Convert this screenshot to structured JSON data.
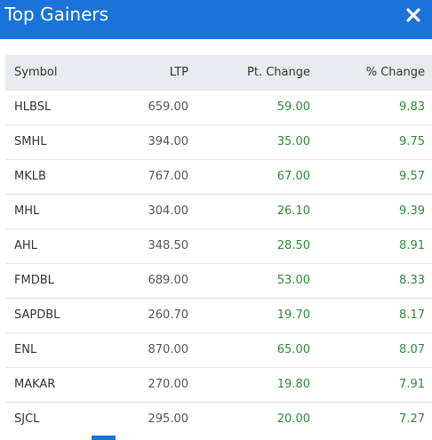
{
  "modal": {
    "title": "Top Gainers",
    "close_icon": "close-icon"
  },
  "table": {
    "headers": {
      "symbol": "Symbol",
      "ltp": "LTP",
      "pt_change": "Pt. Change",
      "pct_change": "% Change"
    },
    "rows": [
      {
        "symbol": "HLBSL",
        "ltp": "659.00",
        "pt_change": "59.00",
        "pct_change": "9.83"
      },
      {
        "symbol": "SMHL",
        "ltp": "394.00",
        "pt_change": "35.00",
        "pct_change": "9.75"
      },
      {
        "symbol": "MKLB",
        "ltp": "767.00",
        "pt_change": "67.00",
        "pct_change": "9.57"
      },
      {
        "symbol": "MHL",
        "ltp": "304.00",
        "pt_change": "26.10",
        "pct_change": "9.39"
      },
      {
        "symbol": "AHL",
        "ltp": "348.50",
        "pt_change": "28.50",
        "pct_change": "8.91"
      },
      {
        "symbol": "FMDBL",
        "ltp": "689.00",
        "pt_change": "53.00",
        "pct_change": "8.33"
      },
      {
        "symbol": "SAPDBL",
        "ltp": "260.70",
        "pt_change": "19.70",
        "pct_change": "8.17"
      },
      {
        "symbol": "ENL",
        "ltp": "870.00",
        "pt_change": "65.00",
        "pct_change": "8.07"
      },
      {
        "symbol": "MAKAR",
        "ltp": "270.00",
        "pt_change": "19.80",
        "pct_change": "7.91"
      },
      {
        "symbol": "SJCL",
        "ltp": "295.00",
        "pt_change": "20.00",
        "pct_change": "7.27"
      }
    ]
  },
  "colors": {
    "header_bg": "#1a73d9",
    "positive": "#2e8b3a",
    "table_header_bg": "#e9ecef"
  }
}
